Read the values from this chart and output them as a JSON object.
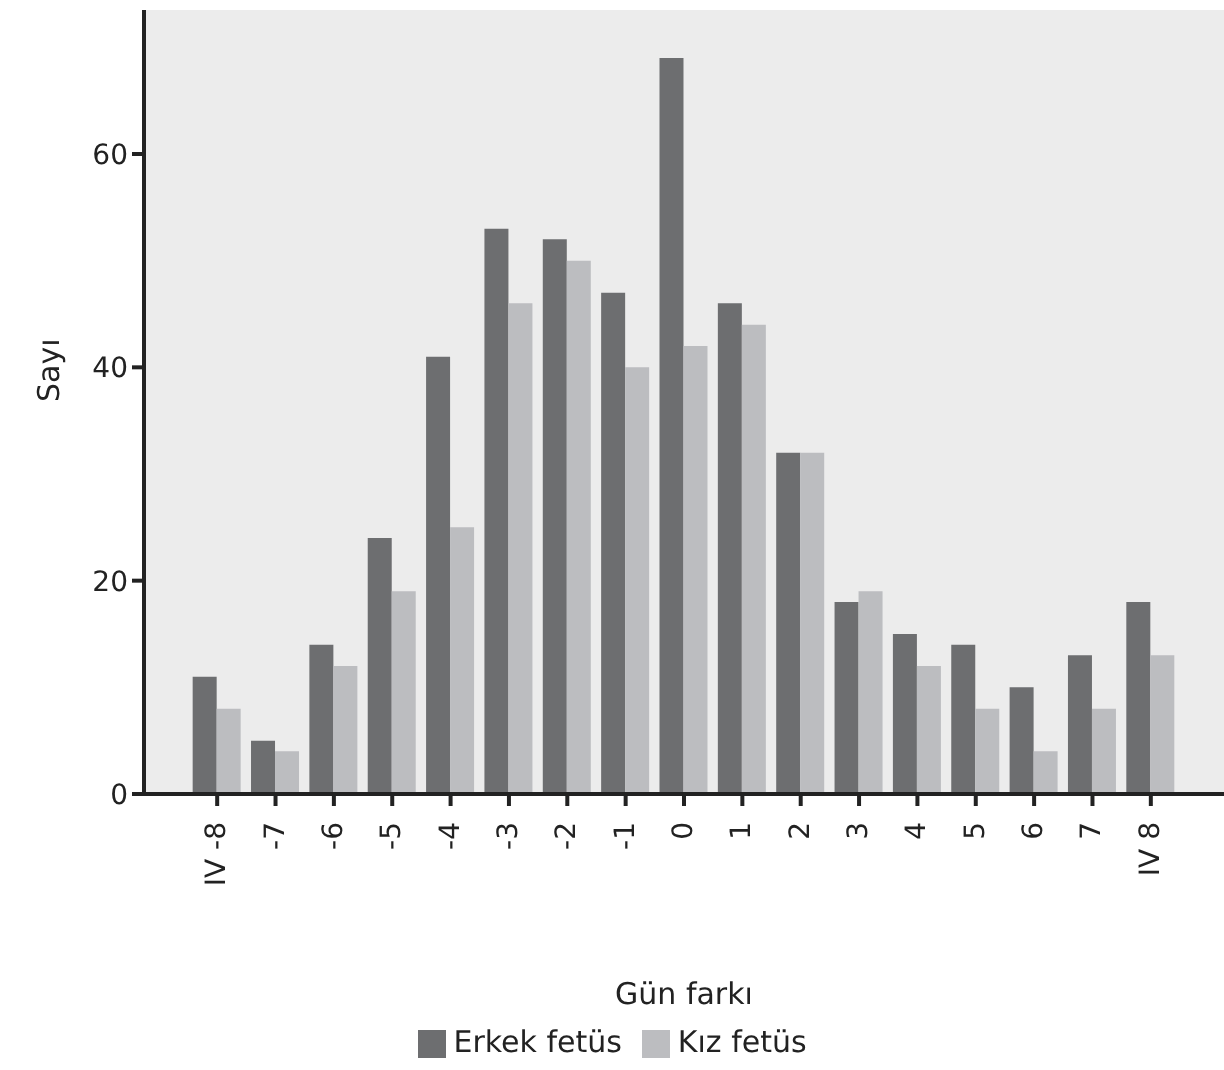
{
  "chart_data": {
    "type": "bar",
    "xlabel": "Gün farkı",
    "ylabel": "Sayı",
    "categories": [
      "IV -8",
      "-7",
      "-6",
      "-5",
      "-4",
      "-3",
      "-2",
      "-1",
      "0",
      "1",
      "2",
      "3",
      "4",
      "5",
      "6",
      "7",
      "IV 8"
    ],
    "series": [
      {
        "name": "Erkek fetüs",
        "color": "#6d6e70",
        "values": [
          11,
          5,
          14,
          24,
          41,
          53,
          52,
          47,
          69,
          46,
          32,
          18,
          15,
          14,
          10,
          13,
          18
        ]
      },
      {
        "name": "Kız fetüs",
        "color": "#bcbdc0",
        "values": [
          8,
          4,
          12,
          19,
          25,
          46,
          50,
          40,
          42,
          44,
          32,
          19,
          12,
          8,
          4,
          8,
          13
        ]
      }
    ],
    "ylim": [
      0,
      73.5
    ],
    "yticks": [
      0,
      20,
      40,
      60
    ],
    "grid": false,
    "legend": "bottom"
  }
}
